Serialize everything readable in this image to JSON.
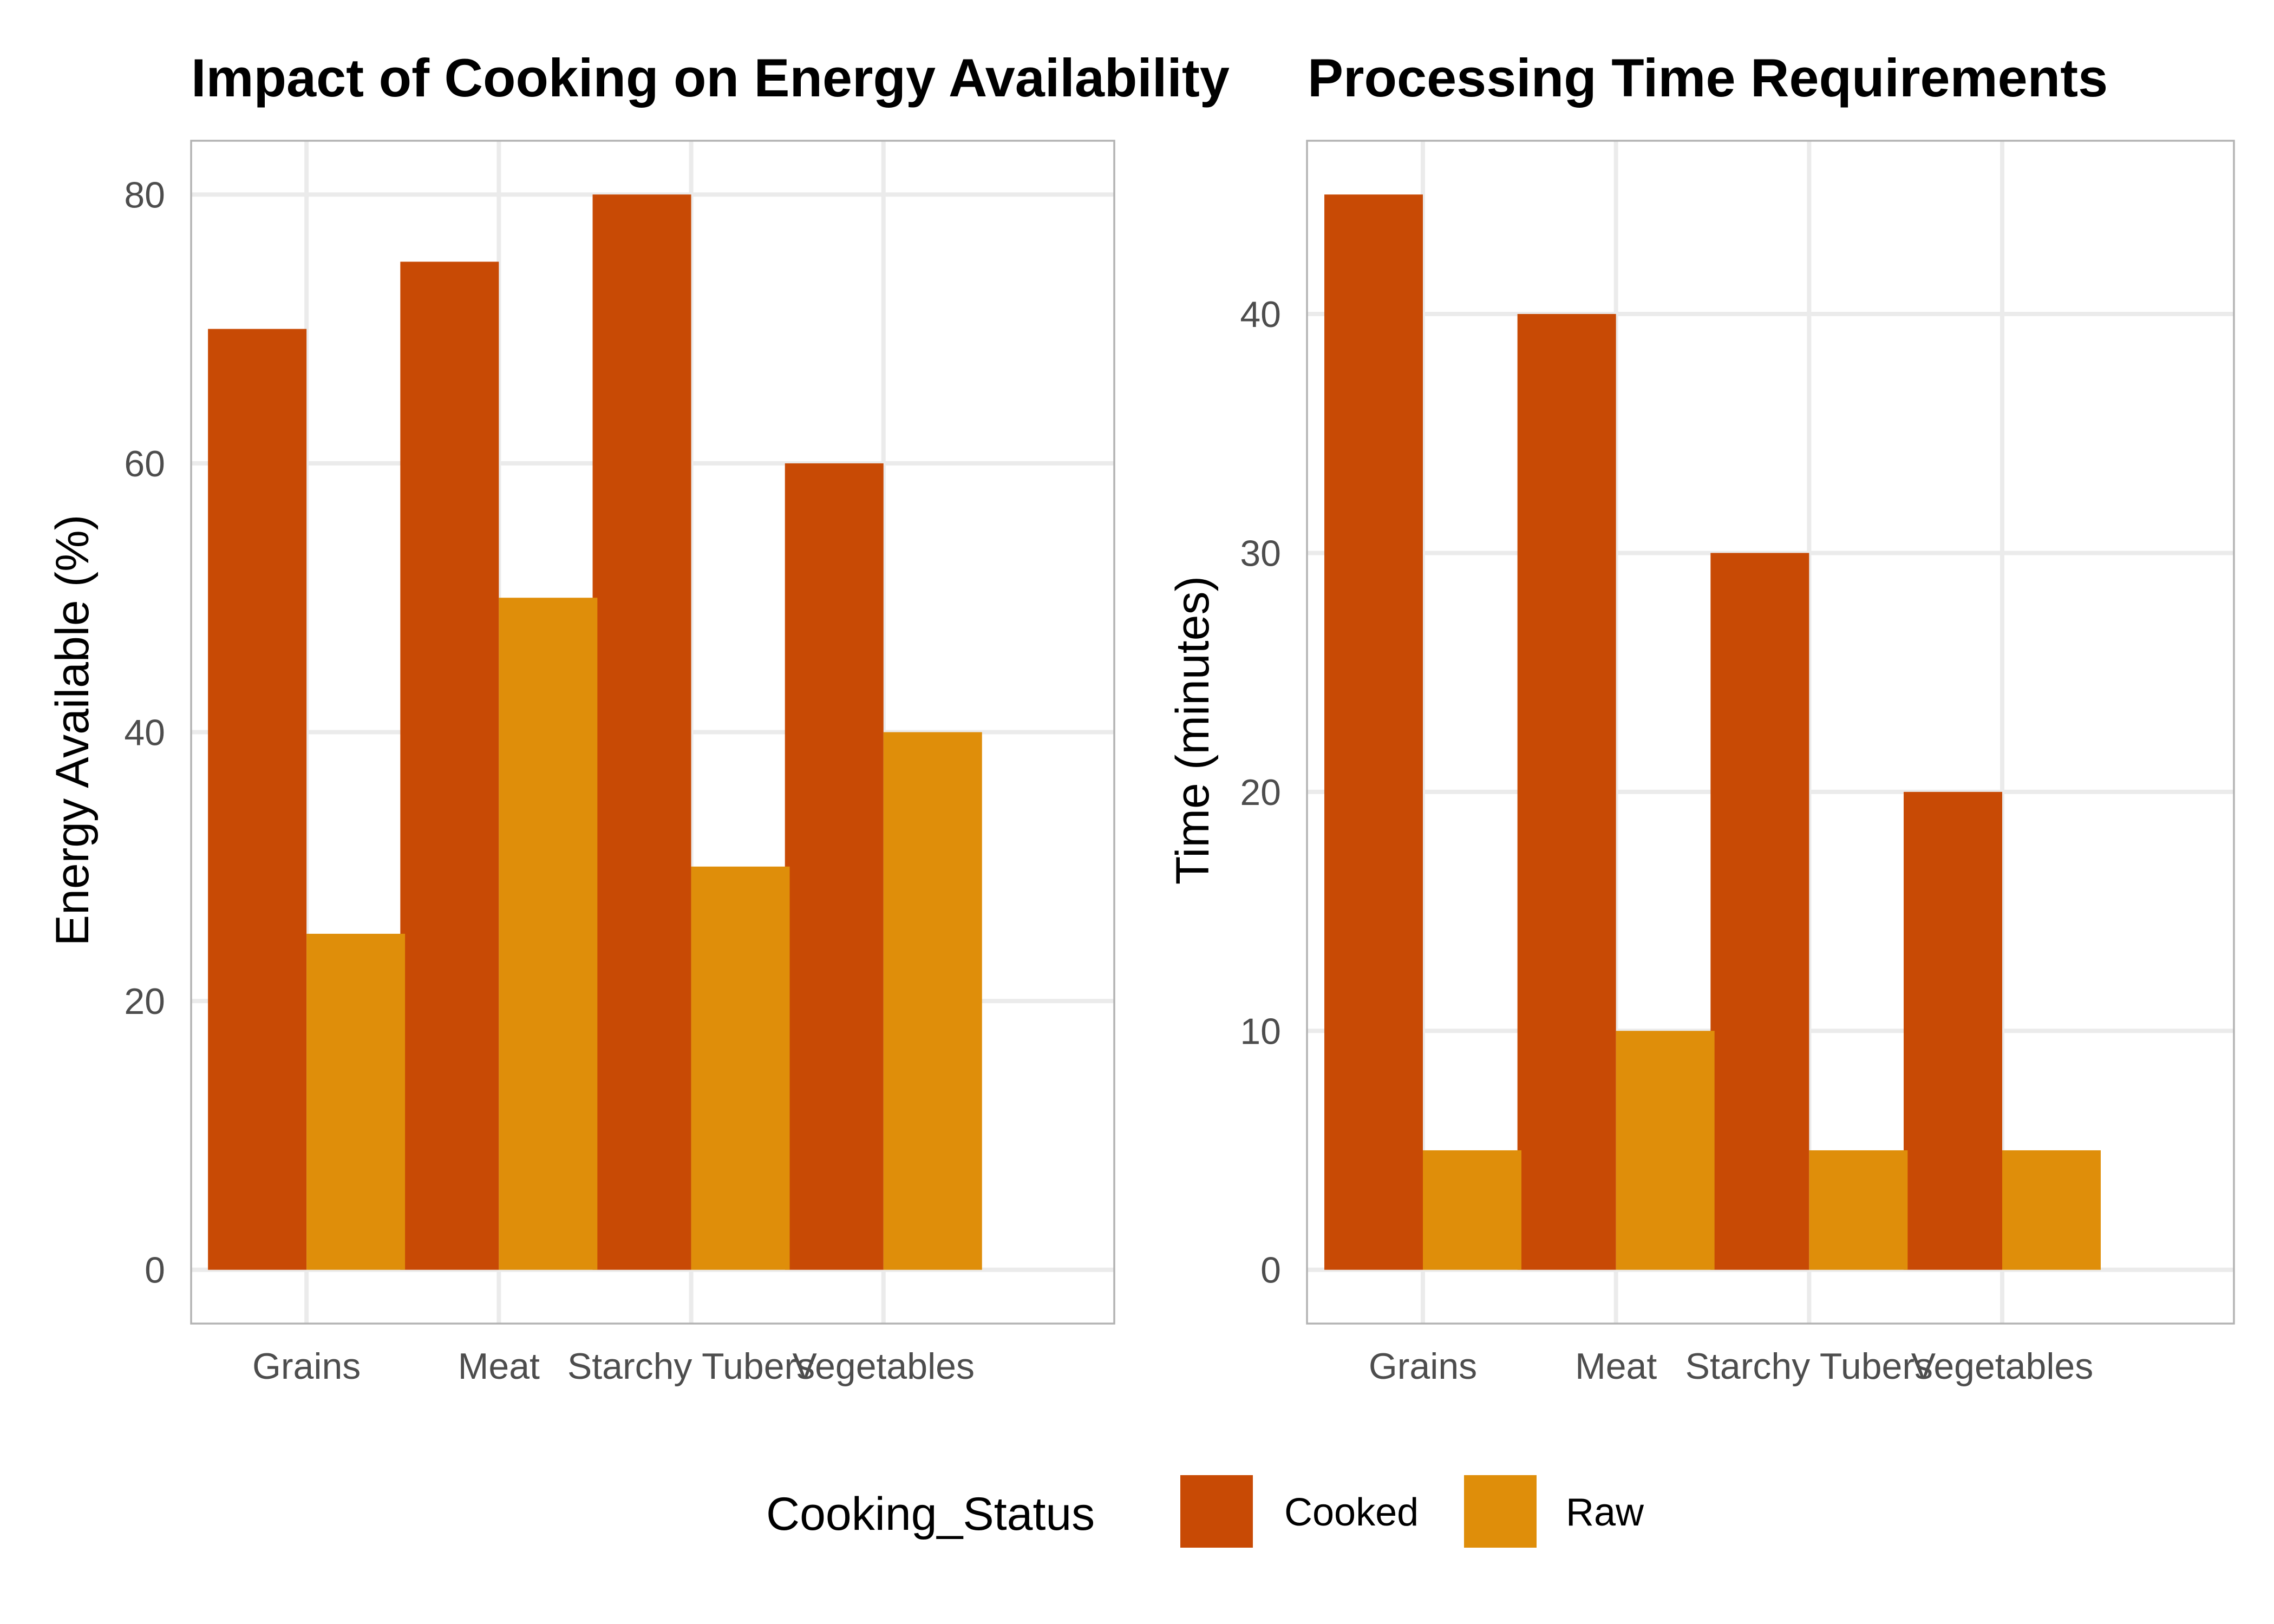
{
  "chart_data": [
    {
      "type": "bar",
      "title": "Impact of Cooking on Energy Availability",
      "xlabel": "",
      "ylabel": "Energy Available (%)",
      "categories": [
        "Grains",
        "Meat",
        "Starchy Tubers",
        "Vegetables"
      ],
      "series": [
        {
          "name": "Cooked",
          "values": [
            70,
            75,
            80,
            60
          ]
        },
        {
          "name": "Raw",
          "values": [
            25,
            50,
            30,
            40
          ]
        }
      ],
      "ylim": [
        -4,
        84
      ],
      "yticks": [
        0,
        20,
        40,
        60,
        80
      ],
      "grid": true
    },
    {
      "type": "bar",
      "title": "Processing Time Requirements",
      "xlabel": "",
      "ylabel": "Time (minutes)",
      "categories": [
        "Grains",
        "Meat",
        "Starchy Tubers",
        "Vegetables"
      ],
      "series": [
        {
          "name": "Cooked",
          "values": [
            45,
            40,
            30,
            20
          ]
        },
        {
          "name": "Raw",
          "values": [
            5,
            10,
            5,
            5
          ]
        }
      ],
      "ylim": [
        -2.25,
        47.25
      ],
      "yticks": [
        0,
        10,
        20,
        30,
        40
      ],
      "grid": true
    }
  ],
  "legend": {
    "title": "Cooking_Status",
    "position": "bottom",
    "items": [
      {
        "label": "Cooked",
        "color": "#C84A05"
      },
      {
        "label": "Raw",
        "color": "#DF8E0A"
      }
    ]
  },
  "colors": {
    "Cooked": "#C84A05",
    "Raw": "#DF8E0A"
  }
}
